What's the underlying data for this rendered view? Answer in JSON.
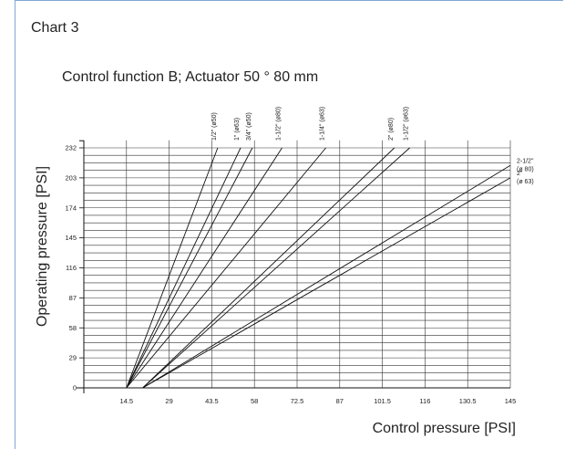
{
  "chart_number": "Chart 3",
  "chart_data": {
    "type": "line",
    "title": "Control function B; Actuator 50 ° 80 mm",
    "xlabel": "Control pressure [PSI]",
    "ylabel": "Operating pressure  [PSI]",
    "xlim": [
      0,
      145
    ],
    "ylim": [
      0,
      232
    ],
    "x_ticks": [
      "14.5",
      "29",
      "43.5",
      "58",
      "72.5",
      "87",
      "101.5",
      "116",
      "130.5",
      "145"
    ],
    "y_ticks": [
      "0",
      "29",
      "58",
      "87",
      "116",
      "145",
      "174",
      "203",
      "232"
    ],
    "grid": true,
    "series": [
      {
        "name": "1/2\" (ø50)",
        "x": [
          14.5,
          45.5
        ],
        "y": [
          0,
          232
        ]
      },
      {
        "name": "1\" (ø63)",
        "x": [
          14.5,
          53.3
        ],
        "y": [
          0,
          232
        ]
      },
      {
        "name": "3/4\" (ø50)",
        "x": [
          14.5,
          57.3
        ],
        "y": [
          0,
          232
        ]
      },
      {
        "name": "1-1/2\" (ø80)",
        "x": [
          14.5,
          67.4
        ],
        "y": [
          0,
          232
        ]
      },
      {
        "name": "1-1/4\" (ø63)",
        "x": [
          14.5,
          82.3
        ],
        "y": [
          0,
          232
        ]
      },
      {
        "name": "2\" (ø80)",
        "x": [
          20.0,
          105.6
        ],
        "y": [
          0,
          232
        ]
      },
      {
        "name": "1-1/2\" (ø63)",
        "x": [
          20.0,
          110.8
        ],
        "y": [
          0,
          232
        ]
      },
      {
        "name": "2-1/2\" (ø 80)",
        "x": [
          20.0,
          145
        ],
        "y": [
          0,
          215
        ]
      },
      {
        "name": "2\" (ø 63)",
        "x": [
          20.0,
          145
        ],
        "y": [
          0,
          203
        ]
      }
    ]
  }
}
